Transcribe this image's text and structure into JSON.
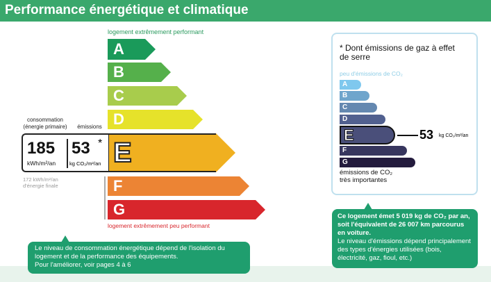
{
  "title": "Performance énergétique et climatique",
  "energy": {
    "top_label": "logement extrêmement performant",
    "bottom_label": "logement extrêmement peu performant",
    "classes": [
      {
        "letter": "A",
        "color": "#1a9a5a"
      },
      {
        "letter": "B",
        "color": "#55b04b"
      },
      {
        "letter": "C",
        "color": "#a8cc4c"
      },
      {
        "letter": "D",
        "color": "#e6e22a"
      },
      {
        "letter": "E",
        "color": "#f0b020"
      },
      {
        "letter": "F",
        "color": "#ec8434"
      },
      {
        "letter": "G",
        "color": "#d8262c"
      }
    ],
    "current_class": "E",
    "consumption_label": "consommation\n(énergie primaire)",
    "emissions_label": "émissions",
    "consumption_value": "185",
    "consumption_unit": "kWh/m²/an",
    "emissions_value": "53",
    "emissions_asterisk": "*",
    "emissions_unit": "kg CO₂/m²/an",
    "final_energy": "172 kWh/m²/an",
    "final_energy_label": "d'énergie finale"
  },
  "climate": {
    "note": "* Dont émissions de gaz à effet de serre",
    "top_label": "peu d'émissions de CO₂",
    "bottom_label_1": "émissions de CO₂",
    "bottom_label_2": "très importantes",
    "classes": [
      {
        "letter": "A",
        "color": "#7fc8ee"
      },
      {
        "letter": "B",
        "color": "#6fa5cc"
      },
      {
        "letter": "C",
        "color": "#6488b0"
      },
      {
        "letter": "D",
        "color": "#51608f"
      },
      {
        "letter": "E",
        "color": "#4a4f7a"
      },
      {
        "letter": "F",
        "color": "#37365e"
      },
      {
        "letter": "G",
        "color": "#231b3d"
      }
    ],
    "current_class": "E",
    "value": "53",
    "unit": "kg CO₂/m²/an"
  },
  "callout_left": {
    "text1": "Le niveau de consommation énergétique dépend de l'isolation du logement et de la performance des équipements.",
    "text2": "Pour l'améliorer, voir pages 4 à 6"
  },
  "callout_right": {
    "bold": "Ce logement émet 5 019 kg de CO₂ par an, soit l'équivalent de 26 007 km parcourus en voiture.",
    "text": "Le niveau d'émissions dépend principalement des types d'énergies utilisées (bois, électricité, gaz, fioul, etc.)"
  }
}
